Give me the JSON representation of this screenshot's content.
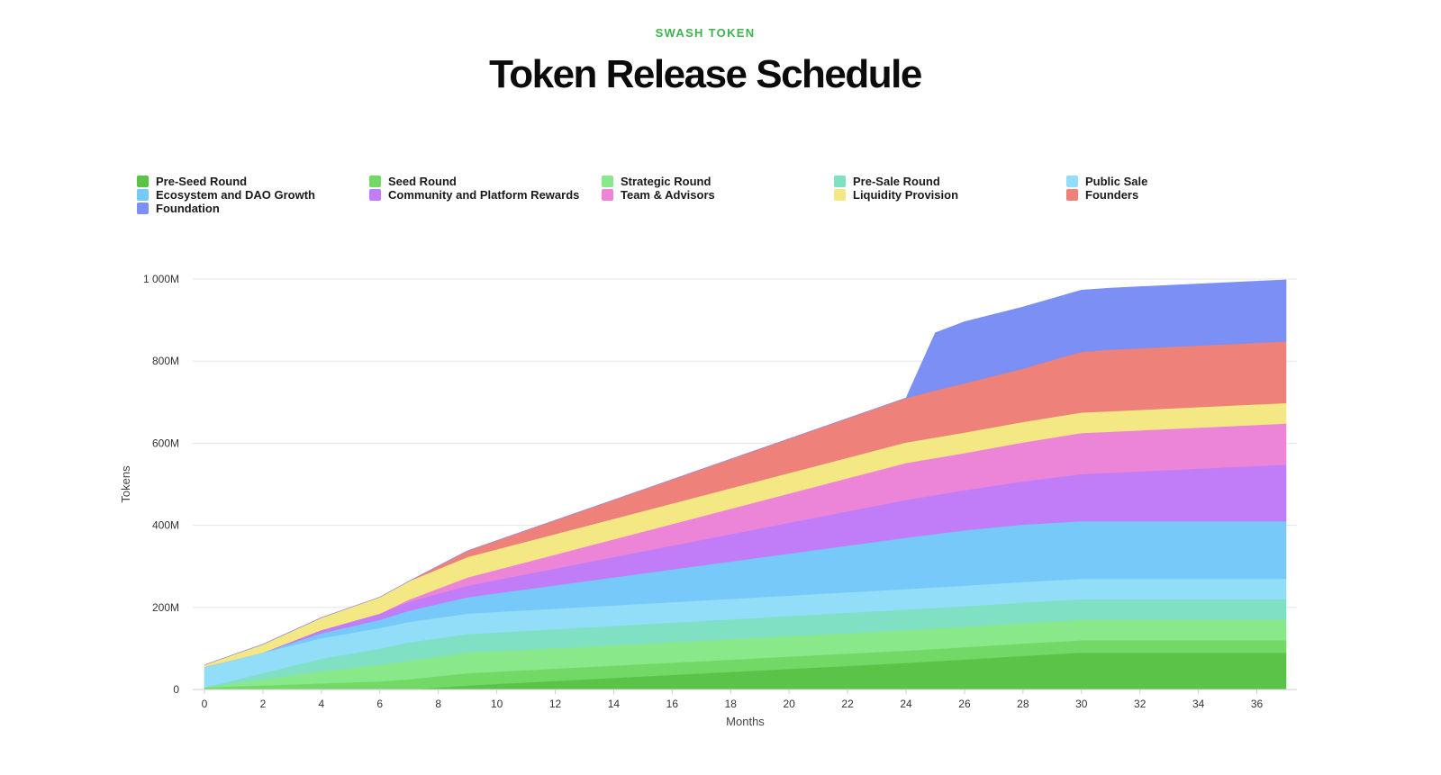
{
  "header": {
    "eyebrow": "SWASH TOKEN",
    "title": "Token Release Schedule"
  },
  "chart_data": {
    "type": "area",
    "stacked": true,
    "xlabel": "Months",
    "ylabel": "Tokens",
    "xlim": [
      0,
      37
    ],
    "ylim": [
      0,
      1000
    ],
    "y_unit": "M",
    "x_ticks": [
      0,
      2,
      4,
      6,
      8,
      10,
      12,
      14,
      16,
      18,
      20,
      22,
      24,
      26,
      28,
      30,
      32,
      34,
      36
    ],
    "y_ticks": [
      {
        "value": 0,
        "label": "0"
      },
      {
        "value": 200,
        "label": "200M"
      },
      {
        "value": 400,
        "label": "400M"
      },
      {
        "value": 600,
        "label": "600M"
      },
      {
        "value": 800,
        "label": "800M"
      },
      {
        "value": 1000,
        "label": "1 000M"
      }
    ],
    "grid": "horizontal",
    "legend_position": "top",
    "x": [
      0,
      2,
      4,
      6,
      7,
      9,
      24,
      25,
      26,
      28,
      30,
      31,
      37
    ],
    "series": [
      {
        "name": "Pre-Seed Round",
        "color": "#5bc448",
        "values": [
          0,
          0,
          0,
          0,
          0,
          10,
          65,
          69,
          73,
          82,
          90,
          90,
          90
        ]
      },
      {
        "name": "Seed Round",
        "color": "#72d966",
        "values": [
          5,
          10,
          15,
          20,
          25,
          30,
          30,
          30,
          30,
          30,
          30,
          30,
          30
        ]
      },
      {
        "name": "Strategic Round",
        "color": "#88e88a",
        "values": [
          0,
          15,
          30,
          40,
          45,
          50,
          50,
          50,
          50,
          50,
          50,
          50,
          50
        ]
      },
      {
        "name": "Pre-Sale Round",
        "color": "#7fe0c4",
        "values": [
          0,
          15,
          30,
          40,
          45,
          45,
          50,
          50,
          50,
          50,
          50,
          50,
          50
        ]
      },
      {
        "name": "Public Sale",
        "color": "#92ddf8",
        "values": [
          50,
          50,
          50,
          50,
          50,
          50,
          50,
          50,
          50,
          50,
          50,
          50,
          50
        ]
      },
      {
        "name": "Ecosystem and DAO Growth",
        "color": "#76c9f8",
        "values": [
          0,
          0,
          12,
          20,
          27,
          40,
          125,
          130,
          135,
          140,
          140,
          140,
          140
        ]
      },
      {
        "name": "Community and Platform Rewards",
        "color": "#c17cf7",
        "values": [
          0,
          0,
          8,
          15,
          22,
          28,
          92,
          95,
          98,
          105,
          115,
          118,
          138
        ]
      },
      {
        "name": "Team & Advisors",
        "color": "#ec85d8",
        "values": [
          0,
          0,
          0,
          0,
          5,
          20,
          90,
          90,
          90,
          95,
          100,
          100,
          100
        ]
      },
      {
        "name": "Liquidity Provision",
        "color": "#f4e884",
        "values": [
          5,
          20,
          30,
          40,
          45,
          50,
          50,
          50,
          50,
          50,
          50,
          50,
          50
        ]
      },
      {
        "name": "Founders",
        "color": "#ee817a",
        "values": [
          0,
          0,
          0,
          0,
          0,
          15,
          108,
          115,
          120,
          130,
          148,
          150,
          150
        ]
      },
      {
        "name": "Foundation",
        "color": "#7b8ff4",
        "values": [
          0,
          0,
          0,
          0,
          0,
          0,
          0,
          140,
          150,
          150,
          150,
          150,
          150
        ]
      }
    ]
  },
  "legend": {
    "items": [
      {
        "label": "Pre-Seed Round",
        "color": "#5bc448"
      },
      {
        "label": "Seed Round",
        "color": "#72d966"
      },
      {
        "label": "Strategic Round",
        "color": "#88e88a"
      },
      {
        "label": "Pre-Sale Round",
        "color": "#7fe0c4"
      },
      {
        "label": "Public Sale",
        "color": "#92ddf8"
      },
      {
        "label": "Ecosystem and DAO Growth",
        "color": "#76c9f8"
      },
      {
        "label": "Community and Platform Rewards",
        "color": "#c17cf7"
      },
      {
        "label": "Team & Advisors",
        "color": "#ec85d8"
      },
      {
        "label": "Liquidity Provision",
        "color": "#f4e884"
      },
      {
        "label": "Founders",
        "color": "#ee817a"
      },
      {
        "label": "Foundation",
        "color": "#7b8ff4"
      }
    ]
  }
}
